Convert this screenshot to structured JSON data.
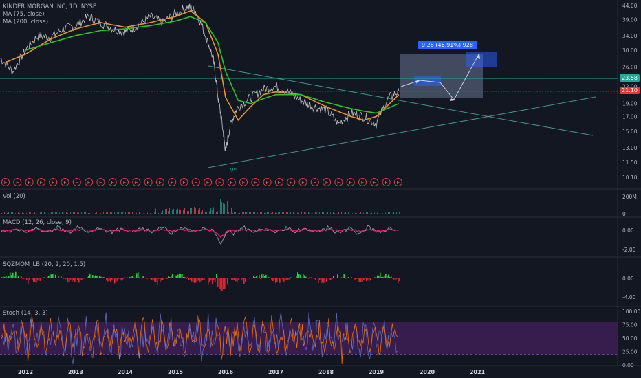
{
  "header": {
    "symbol_line": "KINDER MORGAN INC, 1D, NYSE",
    "ma75": "MA (75, close)",
    "ma200": "MA (200, close)"
  },
  "panes": {
    "vol": "Vol (20)",
    "macd": "MACD (12, 26, close, 9)",
    "sqzmom": "SQZMOM_LB (20, 2, 20, 1.5)",
    "stoch": "Stoch (14, 3, 3)"
  },
  "price_tags": {
    "upper": "23.58",
    "current": "21.10"
  },
  "measure_label": "9.28 (46.91%) 928",
  "annotations": {
    "go": "go",
    "earnings_marker": "E"
  },
  "colors": {
    "background": "#131722",
    "price_line": "#b8b8b8",
    "ma75": "#f0922b",
    "ma200": "#2ec22e",
    "support_line": "#d32f2f",
    "resistance_line": "#26a69a",
    "trendline": "#4db6ac",
    "measure": "#2962ff",
    "macd_line": "#8a8fa3",
    "signal_line": "#e91e63",
    "stoch_k": "#5c6bc0",
    "stoch_d": "#ef6c00",
    "stoch_band": "#3d1f55"
  },
  "chart_data": [
    {
      "type": "line",
      "title": "KINDER MORGAN INC, 1D, NYSE",
      "scale": "log",
      "x_ticks": [
        "2012",
        "2013",
        "2014",
        "2015",
        "2016",
        "2017",
        "2018",
        "2019",
        "2020",
        "2021"
      ],
      "y_ticks": [
        10.1,
        11.5,
        13.0,
        15.0,
        17.0,
        19.0,
        22.0,
        26.0,
        30.0,
        34.0,
        39.0,
        44.0
      ],
      "series": [
        {
          "name": "price",
          "x": [
            2011.5,
            2011.75,
            2012.0,
            2012.25,
            2012.5,
            2012.75,
            2013.0,
            2013.25,
            2013.5,
            2013.75,
            2014.0,
            2014.25,
            2014.5,
            2014.75,
            2015.0,
            2015.25,
            2015.4,
            2015.6,
            2015.75,
            2015.85,
            2015.95,
            2016.0,
            2016.1,
            2016.25,
            2016.5,
            2016.75,
            2017.0,
            2017.25,
            2017.5,
            2017.75,
            2018.0,
            2018.25,
            2018.5,
            2018.75,
            2019.0,
            2019.25,
            2019.45
          ],
          "values": [
            28.0,
            25.0,
            30.0,
            34.0,
            33.5,
            36.0,
            37.0,
            40.0,
            38.0,
            36.0,
            35.0,
            37.0,
            40.0,
            38.0,
            41.0,
            43.5,
            42.0,
            34.0,
            28.0,
            20.0,
            15.0,
            12.5,
            16.0,
            18.5,
            20.0,
            21.5,
            22.0,
            21.0,
            19.5,
            18.5,
            18.0,
            16.0,
            17.5,
            17.0,
            16.0,
            20.0,
            21.1
          ]
        },
        {
          "name": "MA (75, close)",
          "x": [
            2011.6,
            2012.0,
            2012.5,
            2013.0,
            2013.5,
            2014.0,
            2014.5,
            2015.0,
            2015.3,
            2015.6,
            2015.85,
            2016.0,
            2016.25,
            2016.5,
            2016.75,
            2017.0,
            2017.5,
            2018.0,
            2018.5,
            2018.75,
            2019.0,
            2019.45
          ],
          "values": [
            27.0,
            29.0,
            33.0,
            36.0,
            38.0,
            36.5,
            38.0,
            40.0,
            42.0,
            38.0,
            29.0,
            20.0,
            16.5,
            18.5,
            20.5,
            21.0,
            20.5,
            18.5,
            17.0,
            16.5,
            17.0,
            20.5
          ]
        },
        {
          "name": "MA (200, close)",
          "x": [
            2012.0,
            2012.5,
            2013.0,
            2013.5,
            2014.0,
            2014.5,
            2015.0,
            2015.3,
            2015.6,
            2015.85,
            2016.0,
            2016.25,
            2016.5,
            2016.75,
            2017.0,
            2017.5,
            2018.0,
            2018.5,
            2018.75,
            2019.0,
            2019.45
          ],
          "values": [
            30.0,
            32.0,
            34.0,
            35.5,
            36.0,
            37.0,
            38.5,
            40.0,
            38.0,
            32.0,
            25.0,
            19.5,
            19.0,
            19.8,
            20.5,
            20.5,
            19.2,
            18.2,
            17.8,
            17.5,
            19.0
          ]
        }
      ],
      "horizontal_levels": [
        23.58,
        21.1
      ],
      "measure": {
        "label": "9.28 (46.91%) 928"
      }
    },
    {
      "type": "bar",
      "title": "Vol (20)",
      "y_ticks": [
        "200M",
        "0"
      ]
    },
    {
      "type": "line",
      "title": "MACD (12, 26, close, 9)",
      "y_ticks": [
        0.0,
        -2.0
      ]
    },
    {
      "type": "bar",
      "title": "SQZMOM_LB (20, 2, 20, 1.5)",
      "y_ticks": [
        0.0,
        -4.0
      ]
    },
    {
      "type": "line",
      "title": "Stoch (14, 3, 3)",
      "y_ticks": [
        100.0,
        75.0,
        50.0,
        25.0,
        0.0
      ]
    }
  ]
}
